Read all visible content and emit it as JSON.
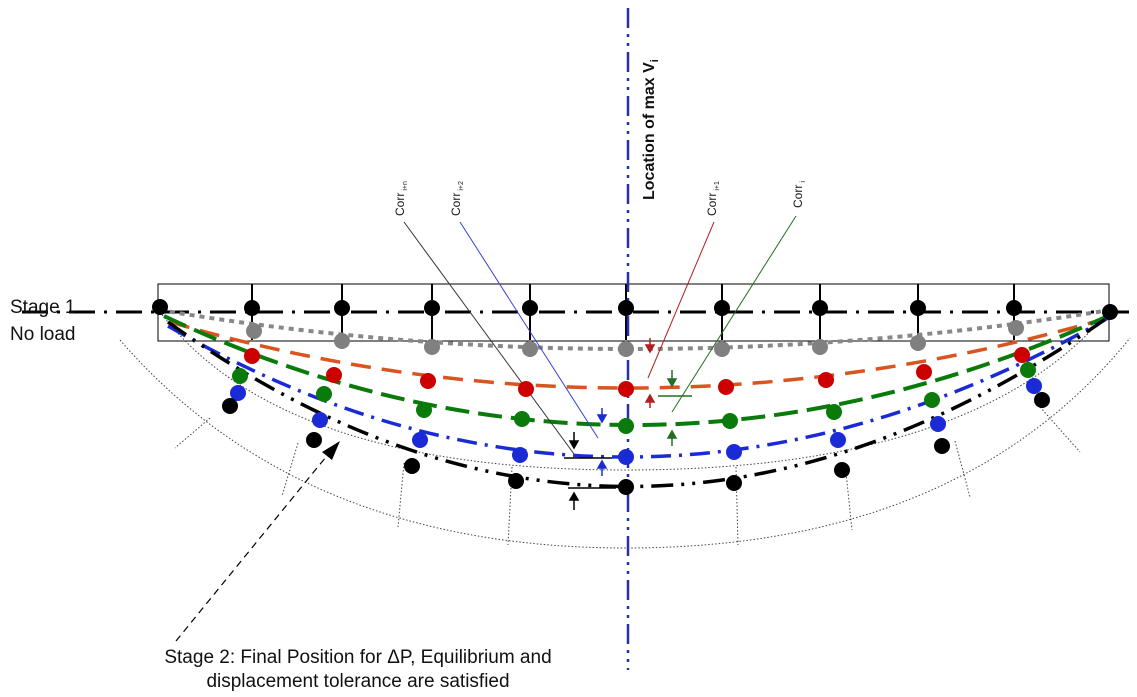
{
  "labels": {
    "stage1_line1": "Stage 1",
    "stage1_line2": "No load",
    "location_max": "Location of max V",
    "location_max_sub": "i",
    "stage2_line1": "Stage 2: Final Position for  ΔP, Equilibrium and",
    "stage2_line2": "displacement tolerance are satisfied"
  },
  "corrections": [
    {
      "name": "Corr",
      "sub": "i+n",
      "color": "#333333"
    },
    {
      "name": "Corr",
      "sub": "i+2",
      "color": "#3344cc"
    },
    {
      "name": "Corr",
      "sub": "i+1",
      "color": "#b02020"
    },
    {
      "name": "Corr",
      "sub": "i",
      "color": "#207020"
    }
  ],
  "colors": {
    "stage1_line": "#000000",
    "iteration_gray": "#808080",
    "iteration_red": "#cc0000",
    "iteration_red_line": "#d9541e",
    "iteration_green": "#0a7a0a",
    "iteration_blue": "#1a2bd6",
    "final_black": "#000000",
    "axis_blue": "#2233aa"
  }
}
